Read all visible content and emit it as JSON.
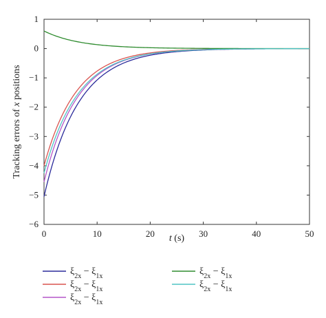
{
  "chart_data": {
    "type": "line",
    "xlabel": "t (s)",
    "ylabel": "Tracking errors of x positions",
    "xlim": [
      0,
      50
    ],
    "ylim": [
      -6,
      1
    ],
    "xticks": [
      "0",
      "10",
      "20",
      "30",
      "40",
      "50"
    ],
    "yticks": [
      "1",
      "0",
      "−1",
      "−2",
      "−3",
      "−4",
      "−5",
      "−6"
    ],
    "grid": false,
    "legend": "bottom",
    "series": [
      {
        "name": "ξ2x − ξ1x",
        "color": "#2a2a9a",
        "y0": -5.05,
        "rate": 0.155
      },
      {
        "name": "ξ2x − ξ1x",
        "color": "#d9534f",
        "y0": -4.0,
        "rate": 0.165
      },
      {
        "name": "ξ2x − ξ1x",
        "color": "#b455c8",
        "y0": -4.55,
        "rate": 0.16
      },
      {
        "name": "ξ2x − ξ1x",
        "color": "#2e8b2e",
        "y0": 0.6,
        "rate": 0.15
      },
      {
        "name": "ξ2x − ξ1x",
        "color": "#4fc3c3",
        "y0": -4.25,
        "rate": 0.158
      }
    ],
    "legend_labels": {
      "main": "ξ",
      "sub1": "2x",
      "minus": " − ξ",
      "sub2": "1x"
    }
  }
}
